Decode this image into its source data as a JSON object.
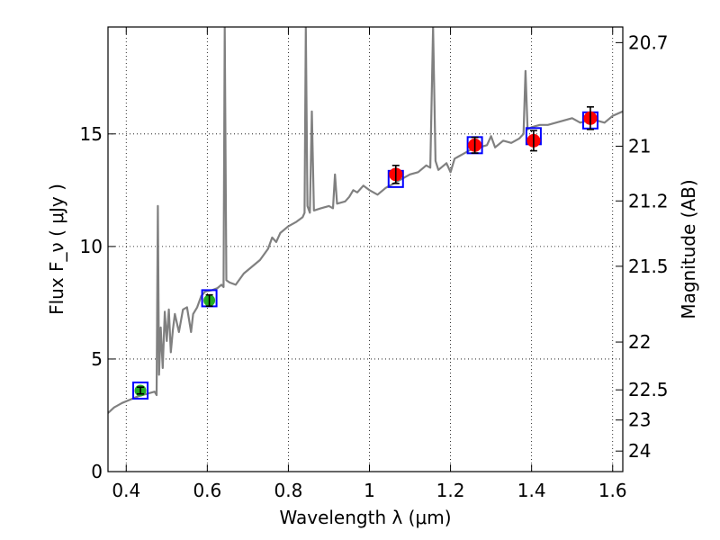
{
  "chart_data": {
    "type": "line",
    "xlabel": "Wavelength  λ (μm)",
    "ylabel": "Flux  F_ν  ( μJy )",
    "ylabel_right": "Magnitude (AB)",
    "xlim": [
      0.355,
      1.625
    ],
    "ylim": [
      0,
      19.75
    ],
    "grid": true,
    "x_ticks": [
      0.4,
      0.6,
      0.8,
      1.0,
      1.2,
      1.4,
      1.6
    ],
    "x_tick_labels": [
      "0.4",
      "0.6",
      "0.8",
      "1",
      "1.2",
      "1.4",
      "1.6"
    ],
    "y_ticks": [
      0,
      5,
      10,
      15
    ],
    "y_tick_labels": [
      "0",
      "5",
      "10",
      "15"
    ],
    "right_ticks": [
      {
        "label": "20.7",
        "value": 20.7
      },
      {
        "label": "21",
        "value": 21
      },
      {
        "label": "21.2",
        "value": 21.2
      },
      {
        "label": "21.5",
        "value": 21.5
      },
      {
        "label": "22",
        "value": 22
      },
      {
        "label": "22.5",
        "value": 22.5
      },
      {
        "label": "23",
        "value": 23
      },
      {
        "label": "24",
        "value": 24
      }
    ],
    "spectrum": {
      "color": "#808080",
      "points": [
        [
          0.355,
          2.6
        ],
        [
          0.37,
          2.85
        ],
        [
          0.39,
          3.05
        ],
        [
          0.41,
          3.2
        ],
        [
          0.43,
          3.35
        ],
        [
          0.45,
          3.45
        ],
        [
          0.47,
          3.55
        ],
        [
          0.475,
          3.4
        ],
        [
          0.478,
          11.8
        ],
        [
          0.481,
          4.3
        ],
        [
          0.485,
          6.4
        ],
        [
          0.49,
          4.6
        ],
        [
          0.495,
          7.1
        ],
        [
          0.5,
          5.8
        ],
        [
          0.505,
          7.2
        ],
        [
          0.51,
          5.3
        ],
        [
          0.515,
          6.3
        ],
        [
          0.52,
          7.0
        ],
        [
          0.53,
          6.2
        ],
        [
          0.54,
          7.2
        ],
        [
          0.55,
          7.3
        ],
        [
          0.56,
          6.2
        ],
        [
          0.565,
          7.0
        ],
        [
          0.575,
          7.3
        ],
        [
          0.585,
          7.8
        ],
        [
          0.595,
          8.0
        ],
        [
          0.61,
          8.05
        ],
        [
          0.625,
          8.15
        ],
        [
          0.635,
          8.3
        ],
        [
          0.64,
          8.2
        ],
        [
          0.643,
          19.75
        ],
        [
          0.647,
          8.5
        ],
        [
          0.655,
          8.4
        ],
        [
          0.67,
          8.3
        ],
        [
          0.69,
          8.8
        ],
        [
          0.71,
          9.1
        ],
        [
          0.73,
          9.4
        ],
        [
          0.75,
          9.9
        ],
        [
          0.76,
          10.4
        ],
        [
          0.77,
          10.2
        ],
        [
          0.78,
          10.6
        ],
        [
          0.8,
          10.9
        ],
        [
          0.82,
          11.1
        ],
        [
          0.835,
          11.3
        ],
        [
          0.84,
          11.5
        ],
        [
          0.843,
          19.75
        ],
        [
          0.847,
          11.8
        ],
        [
          0.853,
          11.5
        ],
        [
          0.858,
          16.0
        ],
        [
          0.863,
          11.6
        ],
        [
          0.88,
          11.7
        ],
        [
          0.9,
          11.8
        ],
        [
          0.91,
          11.7
        ],
        [
          0.915,
          13.2
        ],
        [
          0.92,
          11.9
        ],
        [
          0.94,
          12.0
        ],
        [
          0.95,
          12.2
        ],
        [
          0.96,
          12.5
        ],
        [
          0.97,
          12.4
        ],
        [
          0.985,
          12.7
        ],
        [
          1.0,
          12.5
        ],
        [
          1.02,
          12.3
        ],
        [
          1.04,
          12.6
        ],
        [
          1.06,
          12.8
        ],
        [
          1.08,
          13.0
        ],
        [
          1.1,
          13.2
        ],
        [
          1.12,
          13.3
        ],
        [
          1.14,
          13.6
        ],
        [
          1.15,
          13.5
        ],
        [
          1.157,
          19.75
        ],
        [
          1.163,
          13.8
        ],
        [
          1.17,
          13.4
        ],
        [
          1.19,
          13.7
        ],
        [
          1.2,
          13.3
        ],
        [
          1.21,
          13.9
        ],
        [
          1.23,
          14.1
        ],
        [
          1.25,
          14.3
        ],
        [
          1.27,
          14.4
        ],
        [
          1.29,
          14.5
        ],
        [
          1.3,
          14.9
        ],
        [
          1.31,
          14.4
        ],
        [
          1.33,
          14.7
        ],
        [
          1.35,
          14.6
        ],
        [
          1.37,
          14.8
        ],
        [
          1.38,
          15.0
        ],
        [
          1.385,
          17.8
        ],
        [
          1.39,
          15.2
        ],
        [
          1.4,
          15.3
        ],
        [
          1.42,
          15.4
        ],
        [
          1.44,
          15.4
        ],
        [
          1.46,
          15.5
        ],
        [
          1.48,
          15.6
        ],
        [
          1.5,
          15.7
        ],
        [
          1.52,
          15.5
        ],
        [
          1.54,
          15.6
        ],
        [
          1.56,
          15.6
        ],
        [
          1.58,
          15.5
        ],
        [
          1.6,
          15.8
        ],
        [
          1.625,
          16.0
        ]
      ]
    },
    "model_points": {
      "marker": "open-square",
      "color": "#0000ff",
      "points": [
        [
          0.435,
          3.6
        ],
        [
          0.605,
          7.7
        ],
        [
          1.065,
          13.0
        ],
        [
          1.26,
          14.5
        ],
        [
          1.405,
          14.9
        ],
        [
          1.545,
          15.6
        ]
      ]
    },
    "obs_points_green": {
      "color": "#22aa22",
      "points": [
        {
          "x": 0.435,
          "y": 3.6,
          "err": 0.15
        },
        {
          "x": 0.605,
          "y": 7.6,
          "err": 0.25
        }
      ]
    },
    "obs_points_red": {
      "color": "#ff0000",
      "points": [
        {
          "x": 1.065,
          "y": 13.2,
          "err": 0.4
        },
        {
          "x": 1.26,
          "y": 14.5,
          "err": 0.35
        },
        {
          "x": 1.405,
          "y": 14.7,
          "err": 0.45
        },
        {
          "x": 1.545,
          "y": 15.7,
          "err": 0.5
        }
      ]
    }
  }
}
